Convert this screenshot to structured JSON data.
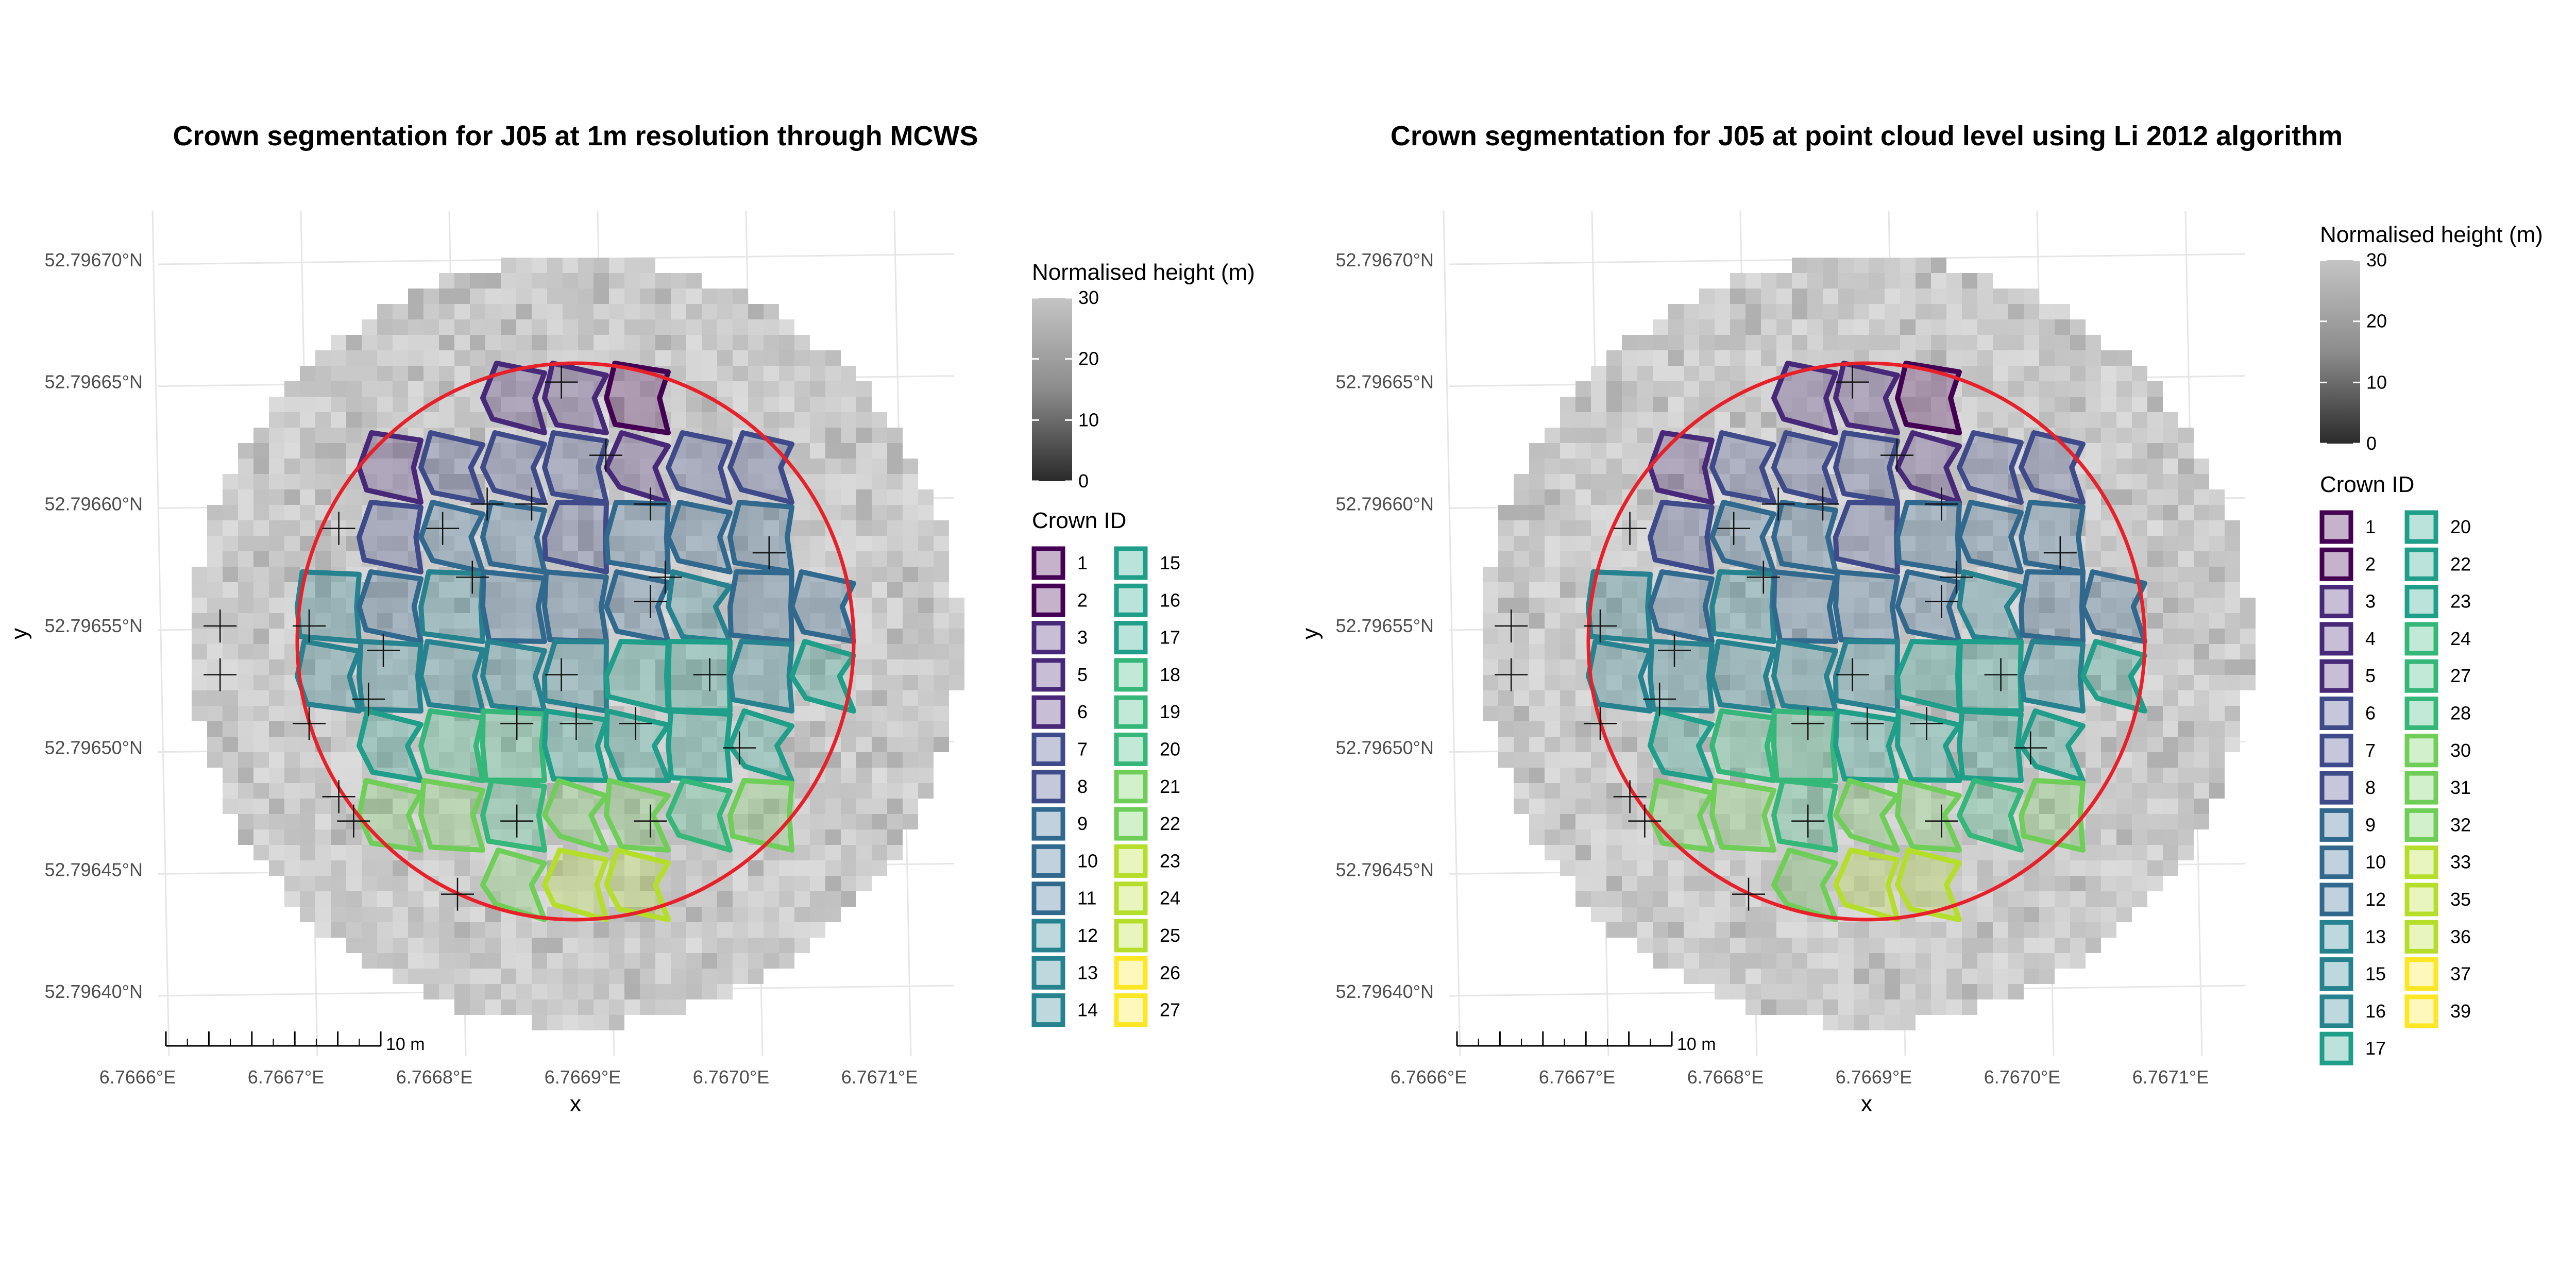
{
  "chart_data": [
    {
      "type": "map",
      "title": "Crown segmentation for J05 at 1m resolution through MCWS",
      "xlabel": "x",
      "ylabel": "y",
      "x_ticks": [
        "6.7666°E",
        "6.7667°E",
        "6.7668°E",
        "6.7669°E",
        "6.7670°E",
        "6.7671°E"
      ],
      "y_ticks": [
        "52.79670°N",
        "52.79665°N",
        "52.79660°N",
        "52.79655°N",
        "52.79650°N",
        "52.79645°N",
        "52.79640°N"
      ],
      "scale_bar_label": "10 m",
      "height_legend": {
        "title": "Normalised height (m)",
        "ticks": [
          "30",
          "20",
          "10",
          "0"
        ]
      },
      "crown_legend": {
        "title": "Crown ID",
        "ids": [
          "1",
          "2",
          "3",
          "5",
          "6",
          "7",
          "8",
          "9",
          "10",
          "11",
          "12",
          "13",
          "14",
          "15",
          "16",
          "17",
          "18",
          "19",
          "20",
          "21",
          "22",
          "23",
          "24",
          "25",
          "26",
          "27"
        ]
      },
      "tree_tops": [
        {
          "lon": 6.76687,
          "lat": 52.79665
        },
        {
          "lon": 6.7669,
          "lat": 52.79662
        },
        {
          "lon": 6.76679,
          "lat": 52.79659
        },
        {
          "lon": 6.76682,
          "lat": 52.7966
        },
        {
          "lon": 6.76685,
          "lat": 52.7966
        },
        {
          "lon": 6.76693,
          "lat": 52.7966
        },
        {
          "lon": 6.76701,
          "lat": 52.79658
        },
        {
          "lon": 6.76672,
          "lat": 52.79659
        },
        {
          "lon": 6.76694,
          "lat": 52.79657
        },
        {
          "lon": 6.76681,
          "lat": 52.79657
        },
        {
          "lon": 6.76693,
          "lat": 52.79656
        },
        {
          "lon": 6.76664,
          "lat": 52.79655
        },
        {
          "lon": 6.7667,
          "lat": 52.79655
        },
        {
          "lon": 6.76675,
          "lat": 52.79654
        },
        {
          "lon": 6.76687,
          "lat": 52.79653
        },
        {
          "lon": 6.76697,
          "lat": 52.79653
        },
        {
          "lon": 6.76664,
          "lat": 52.79653
        },
        {
          "lon": 6.76674,
          "lat": 52.79652
        },
        {
          "lon": 6.7667,
          "lat": 52.79651
        },
        {
          "lon": 6.76684,
          "lat": 52.79651
        },
        {
          "lon": 6.76688,
          "lat": 52.79651
        },
        {
          "lon": 6.76692,
          "lat": 52.79651
        },
        {
          "lon": 6.76699,
          "lat": 52.7965
        },
        {
          "lon": 6.76672,
          "lat": 52.79648
        },
        {
          "lon": 6.76673,
          "lat": 52.79647
        },
        {
          "lon": 6.76684,
          "lat": 52.79647
        },
        {
          "lon": 6.76693,
          "lat": 52.79647
        },
        {
          "lon": 6.7668,
          "lat": 52.79644
        }
      ]
    },
    {
      "type": "map",
      "title": "Crown segmentation for J05 at point cloud level using Li 2012 algorithm",
      "xlabel": "x",
      "ylabel": "y",
      "x_ticks": [
        "6.7666°E",
        "6.7667°E",
        "6.7668°E",
        "6.7669°E",
        "6.7670°E",
        "6.7671°E"
      ],
      "y_ticks": [
        "52.79670°N",
        "52.79665°N",
        "52.79660°N",
        "52.79655°N",
        "52.79650°N",
        "52.79645°N",
        "52.79640°N"
      ],
      "scale_bar_label": "10 m",
      "height_legend": {
        "title": "Normalised height (m)",
        "ticks": [
          "30",
          "20",
          "10",
          "0"
        ]
      },
      "crown_legend": {
        "title": "Crown ID",
        "ids": [
          "1",
          "2",
          "3",
          "4",
          "5",
          "6",
          "7",
          "8",
          "9",
          "10",
          "12",
          "13",
          "15",
          "16",
          "17",
          "20",
          "22",
          "23",
          "24",
          "27",
          "28",
          "30",
          "31",
          "32",
          "33",
          "35",
          "36",
          "37",
          "39"
        ]
      },
      "tree_tops": [
        {
          "lon": 6.76687,
          "lat": 52.79665
        },
        {
          "lon": 6.7669,
          "lat": 52.79662
        },
        {
          "lon": 6.76679,
          "lat": 52.79659
        },
        {
          "lon": 6.76682,
          "lat": 52.7966
        },
        {
          "lon": 6.76685,
          "lat": 52.7966
        },
        {
          "lon": 6.76693,
          "lat": 52.7966
        },
        {
          "lon": 6.76701,
          "lat": 52.79658
        },
        {
          "lon": 6.76672,
          "lat": 52.79659
        },
        {
          "lon": 6.76694,
          "lat": 52.79657
        },
        {
          "lon": 6.76681,
          "lat": 52.79657
        },
        {
          "lon": 6.76693,
          "lat": 52.79656
        },
        {
          "lon": 6.76664,
          "lat": 52.79655
        },
        {
          "lon": 6.7667,
          "lat": 52.79655
        },
        {
          "lon": 6.76675,
          "lat": 52.79654
        },
        {
          "lon": 6.76687,
          "lat": 52.79653
        },
        {
          "lon": 6.76697,
          "lat": 52.79653
        },
        {
          "lon": 6.76664,
          "lat": 52.79653
        },
        {
          "lon": 6.76674,
          "lat": 52.79652
        },
        {
          "lon": 6.7667,
          "lat": 52.79651
        },
        {
          "lon": 6.76684,
          "lat": 52.79651
        },
        {
          "lon": 6.76688,
          "lat": 52.79651
        },
        {
          "lon": 6.76692,
          "lat": 52.79651
        },
        {
          "lon": 6.76699,
          "lat": 52.7965
        },
        {
          "lon": 6.76672,
          "lat": 52.79648
        },
        {
          "lon": 6.76673,
          "lat": 52.79647
        },
        {
          "lon": 6.76684,
          "lat": 52.79647
        },
        {
          "lon": 6.76693,
          "lat": 52.79647
        },
        {
          "lon": 6.7668,
          "lat": 52.79644
        }
      ]
    }
  ]
}
